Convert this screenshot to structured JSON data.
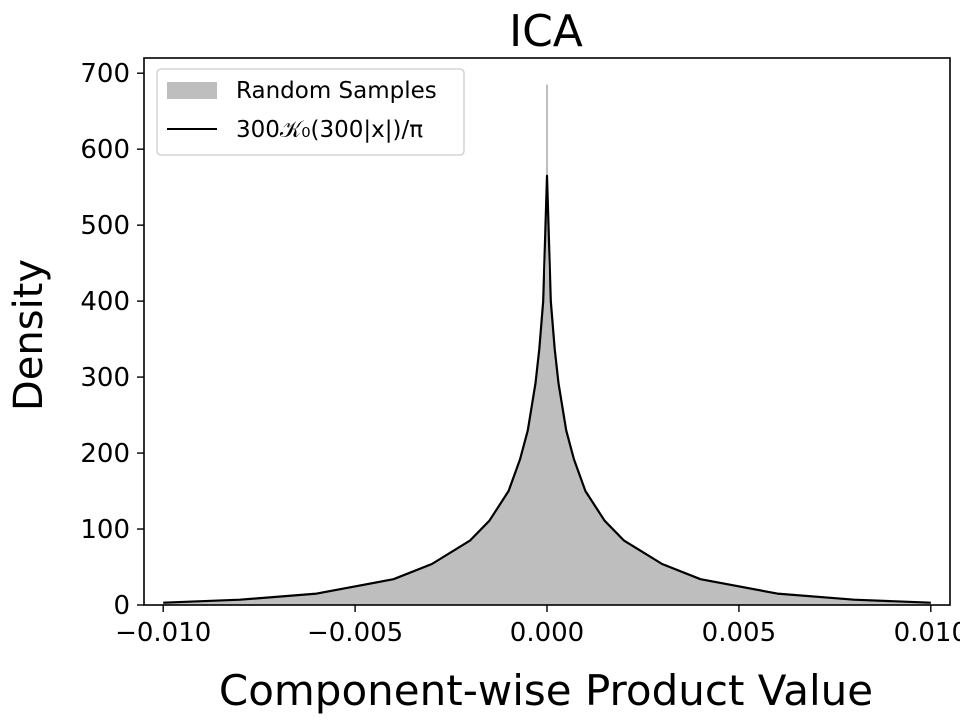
{
  "chart_data": {
    "type": "area",
    "title": "ICA",
    "xlabel": "Component-wise Product Value",
    "ylabel": "Density",
    "xlim": [
      -0.0105,
      0.0105
    ],
    "ylim": [
      0,
      720
    ],
    "xticks": [
      -0.01,
      -0.005,
      0.0,
      0.005,
      0.01
    ],
    "xtick_labels": [
      "−0.010",
      "−0.005",
      "0.000",
      "0.005",
      "0.010"
    ],
    "yticks": [
      0,
      100,
      200,
      300,
      400,
      500,
      600,
      700
    ],
    "ytick_labels": [
      "0",
      "100",
      "200",
      "300",
      "400",
      "500",
      "600",
      "700"
    ],
    "grid": false,
    "legend_position": "top-left",
    "series": [
      {
        "name": "Random Samples",
        "kind": "histogram",
        "color": "#bebebe",
        "peak_value": 685,
        "x": [
          -0.01,
          -0.008,
          -0.006,
          -0.004,
          -0.003,
          -0.002,
          -0.0015,
          -0.001,
          -0.0007,
          -0.0005,
          -0.0003,
          -0.0002,
          -0.0001,
          0.0,
          0.0001,
          0.0002,
          0.0003,
          0.0005,
          0.0007,
          0.001,
          0.0015,
          0.002,
          0.003,
          0.004,
          0.006,
          0.008,
          0.01
        ],
        "values": [
          3,
          7,
          15,
          34,
          54,
          85,
          111,
          150,
          192,
          230,
          292,
          337,
          400,
          685,
          400,
          337,
          292,
          230,
          192,
          150,
          111,
          85,
          54,
          34,
          15,
          7,
          3
        ]
      },
      {
        "name": "300𝒦₀(300|x|)/π",
        "kind": "line",
        "color": "#000000",
        "peak_value": 565,
        "x": [
          -0.01,
          -0.008,
          -0.006,
          -0.004,
          -0.003,
          -0.002,
          -0.0015,
          -0.001,
          -0.0007,
          -0.0005,
          -0.0003,
          -0.0002,
          -0.0001,
          0.0,
          0.0001,
          0.0002,
          0.0003,
          0.0005,
          0.0007,
          0.001,
          0.0015,
          0.002,
          0.003,
          0.004,
          0.006,
          0.008,
          0.01
        ],
        "values": [
          3,
          7,
          15,
          34,
          54,
          85,
          111,
          150,
          192,
          230,
          292,
          337,
          400,
          565,
          400,
          337,
          292,
          230,
          192,
          150,
          111,
          85,
          54,
          34,
          15,
          7,
          3
        ]
      }
    ]
  }
}
